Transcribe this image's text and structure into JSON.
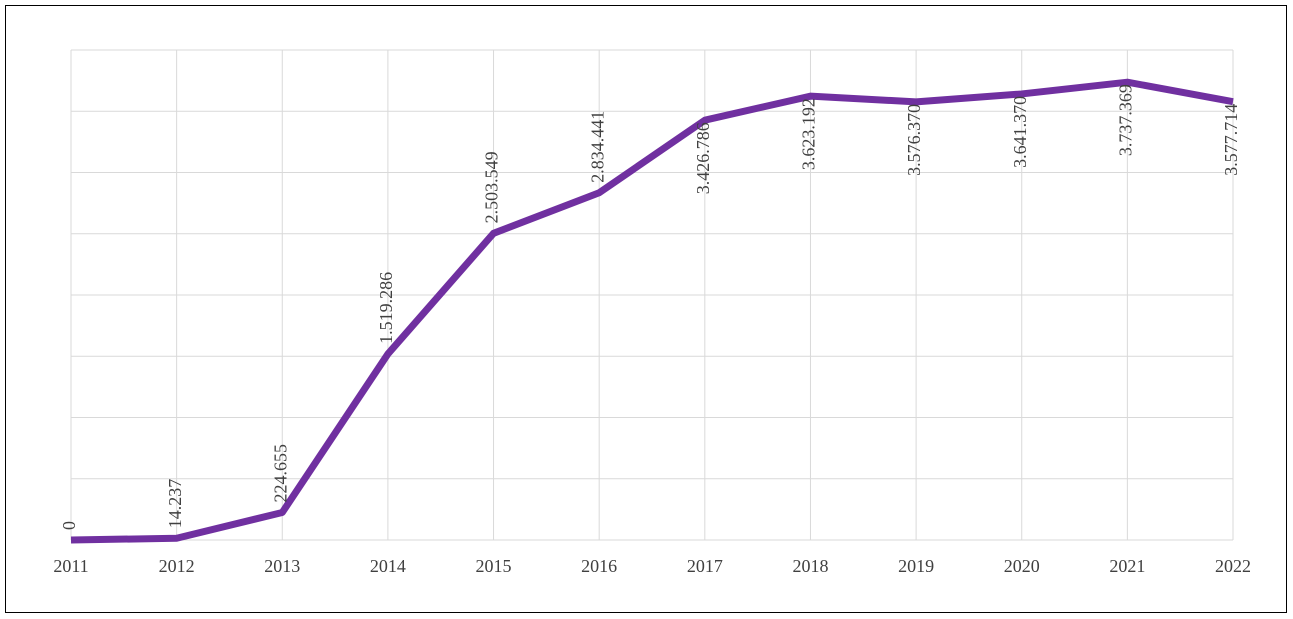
{
  "chart_data": {
    "type": "line",
    "categories": [
      "2011",
      "2012",
      "2013",
      "2014",
      "2015",
      "2016",
      "2017",
      "2018",
      "2019",
      "2020",
      "2021",
      "2022"
    ],
    "series": [
      {
        "color": "#7030a0",
        "values": [
          0,
          14237,
          224655,
          1519286,
          2503549,
          2834441,
          3426786,
          3623192,
          3576370,
          3641370,
          3737369,
          3577714
        ],
        "value_labels": [
          "0",
          "14.237",
          "224.655",
          "1.519.286",
          "2.503.549",
          "2.834.441",
          "3.426.786",
          "3.623.192",
          "3.576.370",
          "3.641.370",
          "3.737.369",
          "3.577.714"
        ]
      }
    ],
    "ylim": [
      0,
      4000000
    ],
    "yticks": [
      0,
      500000,
      1000000,
      1500000,
      2000000,
      2500000,
      3000000,
      3500000,
      4000000
    ],
    "grid": true
  }
}
